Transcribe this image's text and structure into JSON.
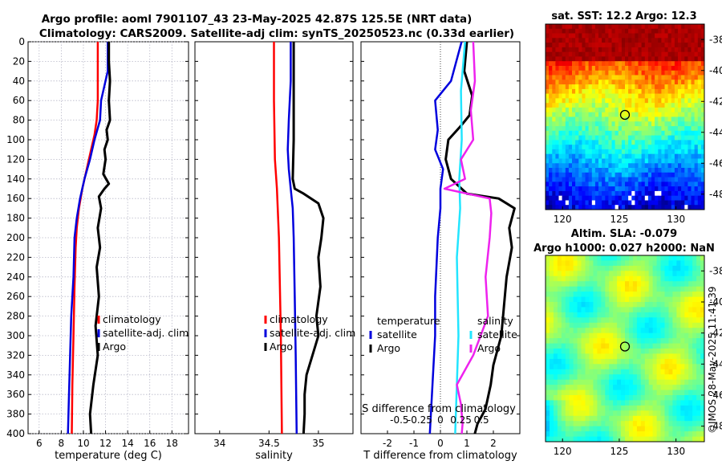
{
  "title_line1": "Argo profile: aoml 7901107_43 23-May-2025 42.87S 125.5E (NRT data)",
  "title_line2": "Climatology: CARS2009. Satellite-adj clim: synTS_20250523.nc (0.33d earlier)",
  "watermark": "©IMOS 28-May-2025 11:41:39",
  "colors": {
    "clim": "#ff0000",
    "sat": "#0000dd",
    "argo": "#000000",
    "sat_s": "#22e5ff",
    "argo_s": "#ee22ee"
  },
  "chart_data": [
    {
      "type": "line",
      "id": "temperature",
      "xlabel": "temperature (deg C)",
      "xlim": [
        5,
        19.5
      ],
      "xticks": [
        6,
        8,
        10,
        12,
        14,
        16,
        18
      ],
      "ylim": [
        0,
        400
      ],
      "yticks": [
        0,
        20,
        40,
        60,
        80,
        100,
        120,
        140,
        160,
        180,
        200,
        220,
        240,
        260,
        280,
        300,
        320,
        340,
        360,
        380,
        400
      ],
      "grid": true,
      "legend": [
        "climatology",
        "satellite-adj. clim",
        "Argo"
      ],
      "series": [
        {
          "name": "climatology",
          "color": "clim",
          "points": [
            [
              11.3,
              0
            ],
            [
              11.3,
              50
            ],
            [
              11.3,
              60
            ],
            [
              11.2,
              80
            ],
            [
              11.0,
              95
            ],
            [
              10.7,
              110
            ],
            [
              10.3,
              130
            ],
            [
              9.9,
              150
            ],
            [
              9.6,
              170
            ],
            [
              9.4,
              190
            ],
            [
              9.3,
              210
            ],
            [
              9.2,
              250
            ],
            [
              9.1,
              300
            ],
            [
              9.0,
              350
            ],
            [
              8.95,
              400
            ]
          ]
        },
        {
          "name": "satellite-adj. clim",
          "color": "sat",
          "points": [
            [
              12.2,
              0
            ],
            [
              12.2,
              30
            ],
            [
              11.6,
              60
            ],
            [
              11.5,
              80
            ],
            [
              11.0,
              100
            ],
            [
              10.6,
              120
            ],
            [
              10.1,
              140
            ],
            [
              9.7,
              160
            ],
            [
              9.4,
              180
            ],
            [
              9.2,
              200
            ],
            [
              9.1,
              240
            ],
            [
              8.9,
              280
            ],
            [
              8.8,
              320
            ],
            [
              8.7,
              360
            ],
            [
              8.6,
              400
            ]
          ]
        },
        {
          "name": "Argo",
          "color": "argo",
          "points": [
            [
              12.3,
              0
            ],
            [
              12.3,
              20
            ],
            [
              12.4,
              40
            ],
            [
              12.3,
              60
            ],
            [
              12.4,
              80
            ],
            [
              12.1,
              90
            ],
            [
              12.2,
              100
            ],
            [
              11.9,
              110
            ],
            [
              12.0,
              120
            ],
            [
              11.8,
              135
            ],
            [
              12.3,
              145
            ],
            [
              11.9,
              150
            ],
            [
              11.4,
              158
            ],
            [
              11.6,
              170
            ],
            [
              11.3,
              190
            ],
            [
              11.5,
              210
            ],
            [
              11.2,
              230
            ],
            [
              11.4,
              260
            ],
            [
              11.1,
              290
            ],
            [
              11.3,
              320
            ],
            [
              10.9,
              350
            ],
            [
              10.6,
              380
            ],
            [
              10.7,
              400
            ]
          ]
        }
      ]
    },
    {
      "type": "line",
      "id": "salinity",
      "xlabel": "salinity",
      "xlim": [
        33.75,
        35.35
      ],
      "xticks": [
        34,
        34.5,
        35
      ],
      "xticklabels": [
        "34",
        "34.5",
        "35"
      ],
      "ylim": [
        0,
        400
      ],
      "grid": false,
      "legend": [
        "climatology",
        "satellite-adj. clim",
        "Argo"
      ],
      "series": [
        {
          "name": "climatology",
          "color": "clim",
          "points": [
            [
              34.55,
              0
            ],
            [
              34.55,
              60
            ],
            [
              34.56,
              120
            ],
            [
              34.58,
              150
            ],
            [
              34.6,
              200
            ],
            [
              34.62,
              300
            ],
            [
              34.63,
              400
            ]
          ]
        },
        {
          "name": "satellite-adj. clim",
          "color": "sat",
          "points": [
            [
              34.72,
              0
            ],
            [
              34.72,
              40
            ],
            [
              34.7,
              80
            ],
            [
              34.69,
              110
            ],
            [
              34.7,
              130
            ],
            [
              34.72,
              150
            ],
            [
              34.74,
              170
            ],
            [
              34.75,
              200
            ],
            [
              34.76,
              260
            ],
            [
              34.77,
              320
            ],
            [
              34.78,
              400
            ]
          ]
        },
        {
          "name": "Argo",
          "color": "argo",
          "points": [
            [
              34.75,
              0
            ],
            [
              34.75,
              100
            ],
            [
              34.74,
              140
            ],
            [
              34.76,
              150
            ],
            [
              34.85,
              155
            ],
            [
              35.0,
              165
            ],
            [
              35.05,
              180
            ],
            [
              35.03,
              200
            ],
            [
              35.0,
              220
            ],
            [
              35.02,
              250
            ],
            [
              34.98,
              280
            ],
            [
              35.0,
              300
            ],
            [
              34.94,
              320
            ],
            [
              34.88,
              340
            ],
            [
              34.86,
              360
            ],
            [
              34.86,
              380
            ],
            [
              34.85,
              400
            ]
          ]
        }
      ]
    },
    {
      "type": "line",
      "id": "difference",
      "xlabel": "T difference from climatology",
      "xlim": [
        -3,
        3
      ],
      "xticks": [
        -2,
        -1,
        0,
        1,
        2
      ],
      "x2label": "S difference from climatology",
      "x2ticks": [
        -0.5,
        -0.25,
        0,
        0.25,
        0.5
      ],
      "x2ticklabels": [
        "-0.5",
        "-0.25",
        "0",
        "0.25",
        "0.5"
      ],
      "ylim": [
        0,
        400
      ],
      "grid": false,
      "legend_left": {
        "header": "temperature",
        "items": [
          "satellite",
          "Argo"
        ]
      },
      "legend_right": {
        "header": "salinity",
        "items": [
          "satellite",
          "Argo"
        ]
      },
      "series": [
        {
          "name": "T satellite",
          "color": "sat",
          "points": [
            [
              0.8,
              0
            ],
            [
              0.4,
              40
            ],
            [
              -0.2,
              60
            ],
            [
              -0.1,
              90
            ],
            [
              -0.2,
              110
            ],
            [
              0.1,
              130
            ],
            [
              0.0,
              150
            ],
            [
              0.0,
              170
            ],
            [
              -0.1,
              200
            ],
            [
              -0.2,
              260
            ],
            [
              -0.2,
              300
            ],
            [
              -0.3,
              350
            ],
            [
              -0.4,
              400
            ]
          ]
        },
        {
          "name": "T Argo",
          "color": "argo",
          "points": [
            [
              1.0,
              0
            ],
            [
              0.9,
              30
            ],
            [
              1.2,
              55
            ],
            [
              1.1,
              75
            ],
            [
              0.8,
              85
            ],
            [
              0.3,
              100
            ],
            [
              0.2,
              120
            ],
            [
              0.4,
              140
            ],
            [
              1.0,
              155
            ],
            [
              2.2,
              160
            ],
            [
              2.8,
              170
            ],
            [
              2.6,
              190
            ],
            [
              2.7,
              210
            ],
            [
              2.5,
              240
            ],
            [
              2.4,
              270
            ],
            [
              2.3,
              300
            ],
            [
              2.0,
              330
            ],
            [
              1.9,
              350
            ],
            [
              1.7,
              375
            ],
            [
              1.4,
              390
            ],
            [
              1.3,
              400
            ]
          ]
        },
        {
          "name": "S satellite",
          "color": "sat_s",
          "points": [
            [
              0.3,
              0
            ],
            [
              0.25,
              50
            ],
            [
              0.26,
              100
            ],
            [
              0.23,
              140
            ],
            [
              0.24,
              170
            ],
            [
              0.2,
              220
            ],
            [
              0.22,
              300
            ],
            [
              0.2,
              350
            ],
            [
              0.18,
              400
            ]
          ]
        },
        {
          "name": "S Argo",
          "color": "argo_s",
          "points": [
            [
              0.4,
              0
            ],
            [
              0.42,
              40
            ],
            [
              0.37,
              70
            ],
            [
              0.4,
              100
            ],
            [
              0.25,
              120
            ],
            [
              0.3,
              140
            ],
            [
              0.05,
              150
            ],
            [
              0.6,
              160
            ],
            [
              0.62,
              175
            ],
            [
              0.6,
              200
            ],
            [
              0.55,
              240
            ],
            [
              0.58,
              280
            ],
            [
              0.4,
              320
            ],
            [
              0.2,
              350
            ],
            [
              0.25,
              370
            ],
            [
              0.27,
              390
            ],
            [
              0.26,
              400
            ]
          ]
        }
      ]
    },
    {
      "type": "heatmap",
      "id": "sst",
      "title": "sat. SST: 12.2 Argo: 12.3",
      "xticks": [
        120,
        125,
        130
      ],
      "yticks": [
        -38,
        -40,
        -42,
        -44,
        -46,
        -48
      ],
      "xlim": [
        118.5,
        132.5
      ],
      "ylim": [
        -49,
        -37
      ],
      "marker": {
        "lon": 125.5,
        "lat": -42.87
      }
    },
    {
      "type": "heatmap",
      "id": "sla",
      "title_line1": "Altim. SLA: -0.079",
      "title_line2": "Argo h1000: 0.027 h2000: NaN",
      "xticks": [
        120,
        125,
        130
      ],
      "yticks": [
        -38,
        -40,
        -42,
        -44,
        -46,
        -48
      ],
      "xlim": [
        118.5,
        132.5
      ],
      "ylim": [
        -49,
        -37
      ],
      "marker": {
        "lon": 125.5,
        "lat": -42.87
      }
    }
  ]
}
